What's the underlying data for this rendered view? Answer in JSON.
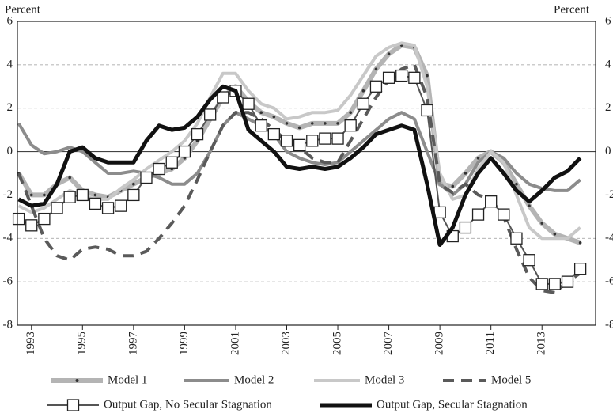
{
  "chart_data": {
    "type": "line",
    "y_label_left": "Percent",
    "y_label_right": "Percent",
    "x": [
      1992.5,
      1993,
      1993.5,
      1994,
      1994.5,
      1995,
      1995.5,
      1996,
      1996.5,
      1997,
      1997.5,
      1998,
      1998.5,
      1999,
      1999.5,
      2000,
      2000.5,
      2001,
      2001.5,
      2002,
      2002.5,
      2003,
      2003.5,
      2004,
      2004.5,
      2005,
      2005.5,
      2006,
      2006.5,
      2007,
      2007.5,
      2008,
      2008.5,
      2009,
      2009.5,
      2010,
      2010.5,
      2011,
      2011.5,
      2012,
      2012.5,
      2013,
      2013.5,
      2014,
      2014.5
    ],
    "xlim": [
      1992.45,
      2015.1
    ],
    "xticks": [
      1993,
      1995,
      1997,
      1999,
      2001,
      2003,
      2005,
      2007,
      2009,
      2011,
      2013
    ],
    "ylim": [
      -8,
      6
    ],
    "yticks": [
      -8,
      -6,
      -4,
      -2,
      0,
      2,
      4,
      6
    ],
    "grid": true,
    "series": [
      {
        "name": "Model 1",
        "color": "#b4b4b4",
        "marker": "dot",
        "values": [
          -1,
          -2,
          -2,
          -1.5,
          -1.2,
          -1.8,
          -2.0,
          -2.1,
          -1.8,
          -1.5,
          -1.2,
          -1,
          -0.8,
          -0.3,
          0.5,
          1.5,
          2.5,
          3,
          2.3,
          1.8,
          1.6,
          1.3,
          1.1,
          1.3,
          1.3,
          1.3,
          1.8,
          2.8,
          3.8,
          4.5,
          4.9,
          4.8,
          3.5,
          -1.5,
          -1.6,
          -1.0,
          -0.3,
          0,
          -0.5,
          -1.5,
          -2.5,
          -3.3,
          -3.8,
          -4.0,
          -4.2
        ]
      },
      {
        "name": "Model 2",
        "color": "#8c8c8c",
        "values": [
          1.3,
          0.3,
          -0.1,
          0.0,
          0.2,
          0.0,
          -0.5,
          -1.0,
          -1.0,
          -0.9,
          -1.0,
          -1.2,
          -1.5,
          -1.5,
          -1.0,
          0.0,
          1.2,
          1.8,
          1.5,
          1.2,
          0.8,
          0.0,
          -0.3,
          -0.5,
          -0.6,
          -0.5,
          0.0,
          0.5,
          1.0,
          1.5,
          1.8,
          1.5,
          0.0,
          -1.5,
          -2.0,
          -1.5,
          -0.5,
          0.0,
          -0.3,
          -1.0,
          -1.5,
          -1.7,
          -1.8,
          -1.8,
          -1.3
        ]
      },
      {
        "name": "Model 3",
        "color": "#c8c8c8",
        "values": [
          -2.5,
          -2.8,
          -2.6,
          -2.2,
          -1.8,
          -2.0,
          -2.2,
          -2.2,
          -1.7,
          -1.3,
          -0.8,
          -0.4,
          0.0,
          0.5,
          1.3,
          2.5,
          3.6,
          3.6,
          2.8,
          2.2,
          2.0,
          1.5,
          1.6,
          1.8,
          1.8,
          1.9,
          2.6,
          3.5,
          4.4,
          4.8,
          5.0,
          4.9,
          3.0,
          -1.0,
          -2.2,
          -2.0,
          -0.8,
          0.0,
          -0.5,
          -2.0,
          -3.5,
          -4.0,
          -4.0,
          -4.0,
          -3.5
        ]
      },
      {
        "name": "Model 5",
        "color": "#5a5a5a",
        "linestyle": "dashed",
        "values": [
          -1.0,
          -2.5,
          -4.0,
          -4.8,
          -5.0,
          -4.5,
          -4.4,
          -4.5,
          -4.8,
          -4.8,
          -4.6,
          -4.0,
          -3.3,
          -2.5,
          -1.3,
          0.0,
          1.2,
          1.8,
          1.8,
          1.5,
          1.0,
          0.5,
          0.2,
          -0.3,
          -0.5,
          -0.5,
          0.5,
          1.5,
          2.5,
          3.3,
          3.8,
          4.0,
          2.5,
          -1.5,
          -1.9,
          -1.5,
          -2.0,
          -2.2,
          -3.0,
          -4.5,
          -5.8,
          -6.4,
          -6.5,
          -6.0,
          -5.6
        ]
      },
      {
        "name": "Output Gap, No Secular Stagnation",
        "color": "#555555",
        "marker": "square",
        "values": [
          -3.1,
          -3.4,
          -3.1,
          -2.6,
          -2.1,
          -2.0,
          -2.4,
          -2.6,
          -2.5,
          -2.0,
          -1.2,
          -0.8,
          -0.5,
          0.0,
          0.8,
          1.7,
          2.5,
          2.8,
          2.2,
          1.2,
          0.8,
          0.5,
          0.3,
          0.5,
          0.6,
          0.6,
          1.2,
          2.2,
          3.0,
          3.4,
          3.5,
          3.4,
          1.9,
          -2.8,
          -3.9,
          -3.5,
          -2.9,
          -2.3,
          -2.9,
          -4.0,
          -5.0,
          -6.1,
          -6.1,
          -6.0,
          -5.4
        ]
      },
      {
        "name": "Output Gap, Secular Stagnation",
        "color": "#111111",
        "values": [
          -2.2,
          -2.5,
          -2.4,
          -1.5,
          0.0,
          0.2,
          -0.3,
          -0.5,
          -0.5,
          -0.5,
          0.5,
          1.2,
          1.0,
          1.1,
          1.6,
          2.4,
          3.0,
          2.8,
          1.0,
          0.5,
          0.0,
          -0.7,
          -0.8,
          -0.7,
          -0.8,
          -0.7,
          -0.3,
          0.2,
          0.8,
          1.0,
          1.2,
          1.0,
          -1.5,
          -4.3,
          -3.5,
          -2.0,
          -1.0,
          -0.3,
          -1.0,
          -1.8,
          -2.3,
          -1.8,
          -1.2,
          -0.9,
          -0.3
        ]
      }
    ]
  }
}
